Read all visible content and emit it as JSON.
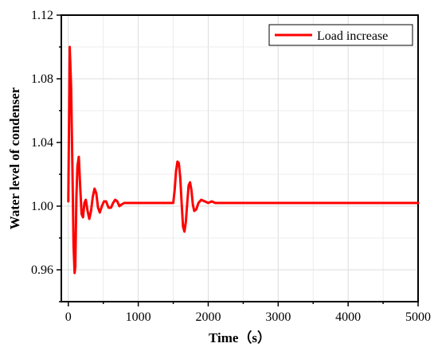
{
  "chart_data": {
    "type": "line",
    "xlabel": "Time（s）",
    "ylabel": "Water level of condenser",
    "xlim": [
      -100,
      5000
    ],
    "ylim": [
      0.94,
      1.12
    ],
    "xticks": [
      0,
      1000,
      2000,
      3000,
      4000,
      5000
    ],
    "yticks": [
      0.96,
      1.0,
      1.04,
      1.08,
      1.12
    ],
    "xtick_labels": [
      "0",
      "1000",
      "2000",
      "3000",
      "4000",
      "5000"
    ],
    "ytick_labels": [
      "0.96",
      "1.00",
      "1.04",
      "1.08",
      "1.12"
    ],
    "grid": true,
    "legend_position": "top-right",
    "series": [
      {
        "name": "Load increase",
        "color": "#ff0000",
        "x": [
          0,
          20,
          40,
          60,
          75,
          90,
          100,
          115,
          130,
          150,
          170,
          190,
          210,
          230,
          250,
          275,
          300,
          325,
          350,
          375,
          400,
          425,
          450,
          480,
          510,
          540,
          575,
          610,
          640,
          670,
          700,
          730,
          760,
          800,
          900,
          1000,
          1200,
          1400,
          1500,
          1520,
          1540,
          1560,
          1580,
          1600,
          1620,
          1640,
          1660,
          1680,
          1700,
          1720,
          1740,
          1760,
          1780,
          1800,
          1830,
          1860,
          1900,
          1950,
          2000,
          2050,
          2100,
          2200,
          2500,
          3000,
          4000,
          5000
        ],
        "y": [
          1.003,
          1.1,
          1.075,
          1.02,
          0.975,
          0.958,
          0.962,
          1.005,
          1.025,
          1.031,
          1.012,
          0.995,
          0.993,
          1.002,
          1.004,
          0.997,
          0.992,
          0.997,
          1.006,
          1.011,
          1.008,
          0.999,
          0.996,
          1.0,
          1.003,
          1.003,
          0.999,
          0.999,
          1.002,
          1.004,
          1.003,
          1.0,
          1.001,
          1.002,
          1.002,
          1.002,
          1.002,
          1.002,
          1.002,
          1.01,
          1.022,
          1.028,
          1.027,
          1.018,
          1.002,
          0.987,
          0.984,
          0.99,
          1.002,
          1.013,
          1.015,
          1.01,
          1.001,
          0.997,
          0.998,
          1.002,
          1.004,
          1.003,
          1.002,
          1.003,
          1.002,
          1.002,
          1.002,
          1.002,
          1.002,
          1.002
        ]
      }
    ]
  }
}
